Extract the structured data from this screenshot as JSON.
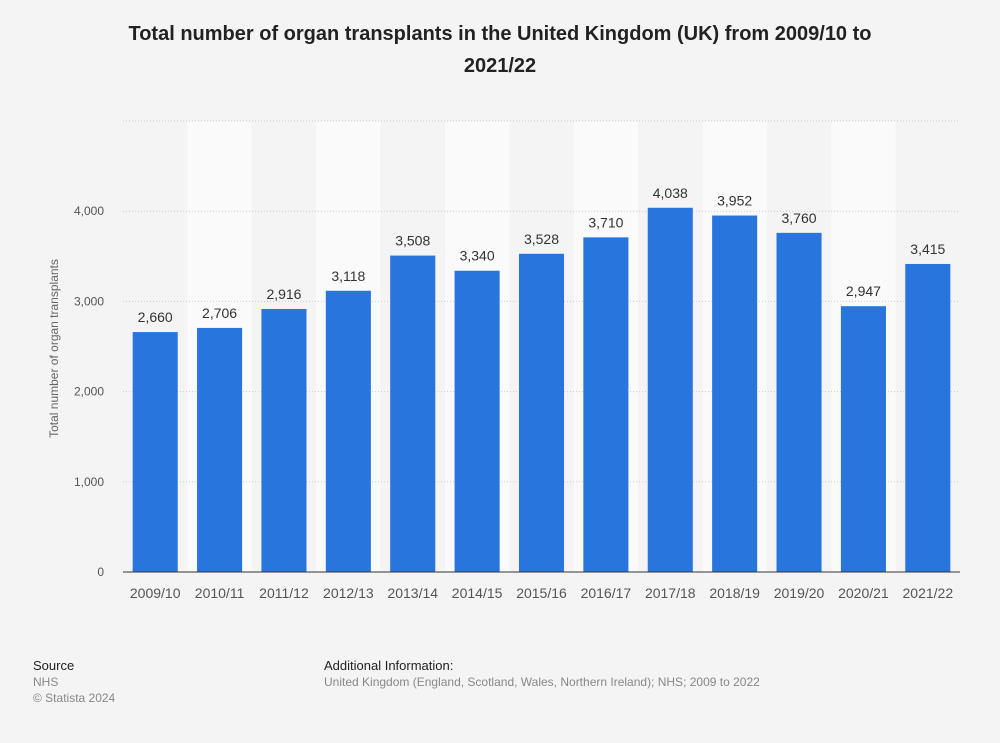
{
  "chart_data": {
    "type": "bar",
    "title": "Total number of organ transplants in the United Kingdom (UK) from 2009/10 to 2021/22",
    "xlabel": "",
    "ylabel": "Total number of organ transplants",
    "ylim": [
      0,
      5000
    ],
    "yticks": [
      0,
      1000,
      2000,
      3000,
      4000
    ],
    "ytick_labels": [
      "0",
      "1,000",
      "2,000",
      "3,000",
      "4,000"
    ],
    "categories": [
      "2009/10",
      "2010/11",
      "2011/12",
      "2012/13",
      "2013/14",
      "2014/15",
      "2015/16",
      "2016/17",
      "2017/18",
      "2018/19",
      "2019/20",
      "2020/21",
      "2021/22"
    ],
    "values": [
      2660,
      2706,
      2916,
      3118,
      3508,
      3340,
      3528,
      3710,
      4038,
      3952,
      3760,
      2947,
      3415
    ],
    "value_labels": [
      "2,660",
      "2,706",
      "2,916",
      "3,118",
      "3,508",
      "3,340",
      "3,528",
      "3,710",
      "4,038",
      "3,952",
      "3,760",
      "2,947",
      "3,415"
    ],
    "bar_color": "#2876dd",
    "grid": true
  },
  "footer": {
    "source_heading": "Source",
    "source_name": "NHS",
    "copyright": "© Statista 2024",
    "info_heading": "Additional Information:",
    "info_text": "United Kingdom (England, Scotland, Wales, Northern Ireland); NHS; 2009 to 2022"
  },
  "colors": {
    "background": "#f4f4f4",
    "band": "#fafafa",
    "title": "#222222",
    "axis_text": "#555555",
    "footer_text": "#888888"
  }
}
